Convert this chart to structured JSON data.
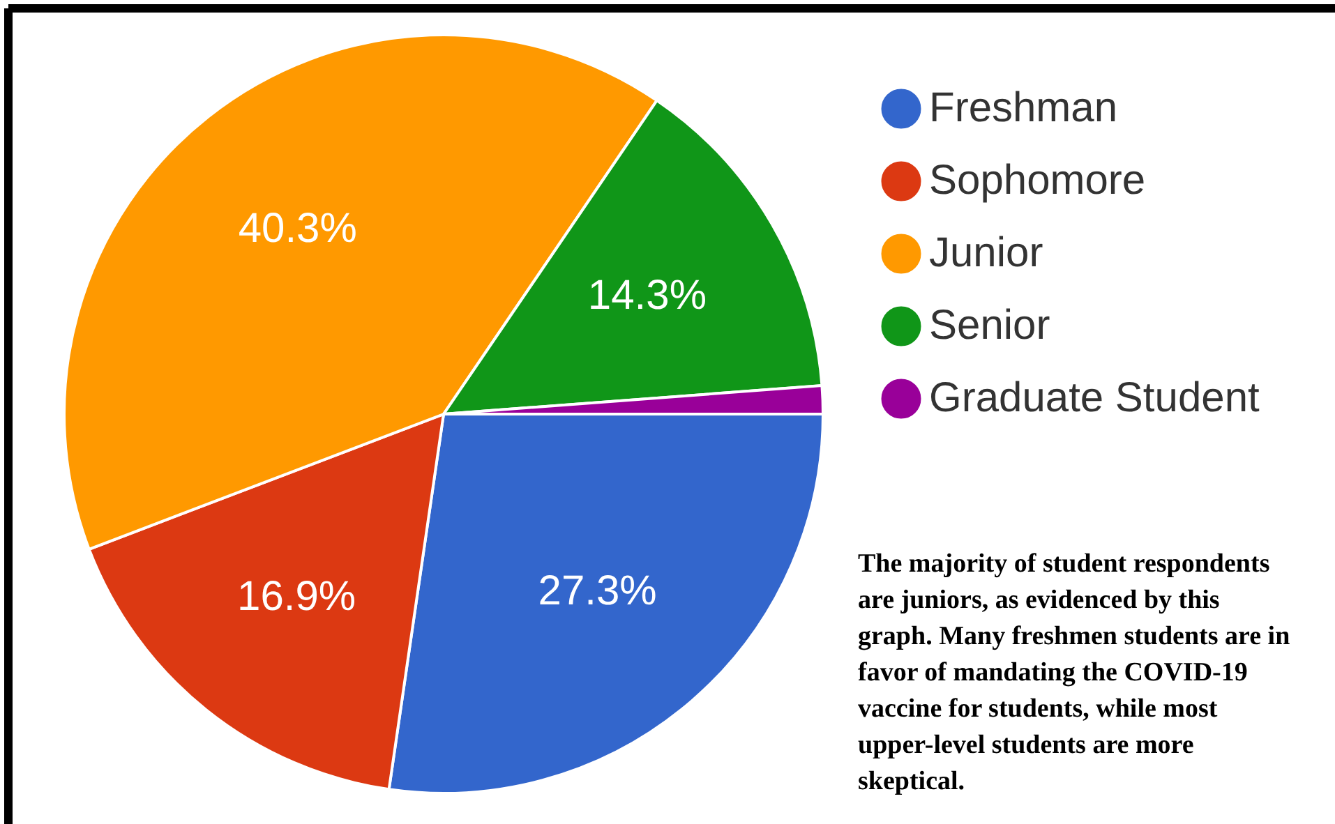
{
  "chart_data": {
    "type": "pie",
    "categories": [
      "Freshman",
      "Sophomore",
      "Junior",
      "Senior",
      "Graduate Student"
    ],
    "values": [
      27.3,
      16.9,
      40.3,
      14.3,
      1.2
    ],
    "colors": [
      "#3366cc",
      "#dc3912",
      "#ff9900",
      "#109618",
      "#990099"
    ],
    "value_labels": [
      "27.3%",
      "16.9%",
      "40.3%",
      "14.3%",
      null
    ],
    "legend": "top right",
    "annotations": [
      "The majority of student respondents are juniors, as evidenced by this graph. Many freshmen students are in favor of mandating the COVID-19 vaccine for students, while most upper-level students are more skeptical."
    ]
  }
}
